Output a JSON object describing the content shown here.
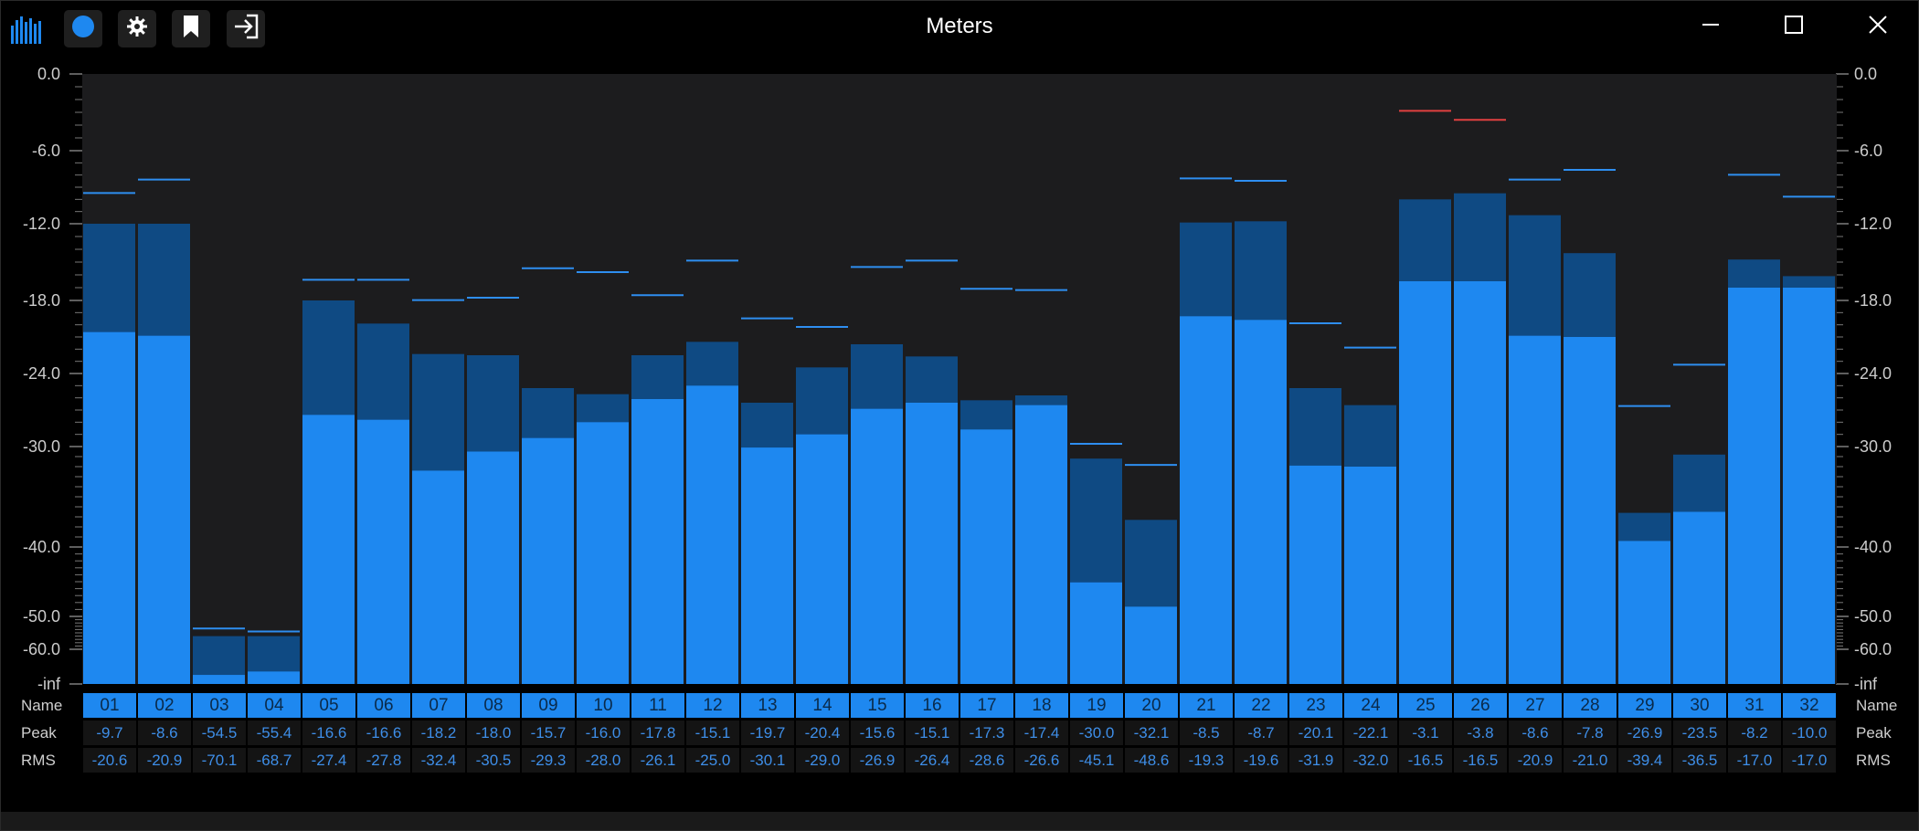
{
  "window": {
    "title": "Meters"
  },
  "toolbar": [
    {
      "name": "meter-logo-icon",
      "interactable": false
    },
    {
      "name": "record-dot-icon",
      "interactable": true
    },
    {
      "name": "gear-icon",
      "interactable": true
    },
    {
      "name": "bookmark-icon",
      "interactable": true
    },
    {
      "name": "exit-icon",
      "interactable": true
    }
  ],
  "window_controls": [
    "minimize-icon",
    "maximize-icon",
    "close-icon"
  ],
  "colors": {
    "rms": "#1e88f0",
    "peak_fill": "#0f4a83",
    "peak_hold": "#2e8ef0",
    "over_hold": "#e04040",
    "panel": "#1c1c1e"
  },
  "scale": {
    "ticks": [
      "0.0",
      "-6.0",
      "-12.0",
      "-18.0",
      "-24.0",
      "-30.0",
      "-40.0",
      "-50.0",
      "-60.0",
      "-inf"
    ]
  },
  "row_labels": {
    "name": "Name",
    "peak": "Peak",
    "rms": "RMS"
  },
  "chart_data": {
    "type": "bar",
    "categories": [
      "01",
      "02",
      "03",
      "04",
      "05",
      "06",
      "07",
      "08",
      "09",
      "10",
      "11",
      "12",
      "13",
      "14",
      "15",
      "16",
      "17",
      "18",
      "19",
      "20",
      "21",
      "22",
      "23",
      "24",
      "25",
      "26",
      "27",
      "28",
      "29",
      "30",
      "31",
      "32"
    ],
    "series": [
      {
        "name": "Peak",
        "values": [
          -9.7,
          -8.6,
          -54.5,
          -55.4,
          -16.6,
          -16.6,
          -18.2,
          -18.0,
          -15.7,
          -16.0,
          -17.8,
          -15.1,
          -19.7,
          -20.4,
          -15.6,
          -15.1,
          -17.3,
          -17.4,
          -30.0,
          -32.1,
          -8.5,
          -8.7,
          -20.1,
          -22.1,
          -3.1,
          -3.8,
          -8.6,
          -7.8,
          -26.9,
          -23.5,
          -8.2,
          -10.0
        ]
      },
      {
        "name": "RMS",
        "values": [
          -20.6,
          -20.9,
          -70.1,
          -68.7,
          -27.4,
          -27.8,
          -32.4,
          -30.5,
          -29.3,
          -28.0,
          -26.1,
          -25.0,
          -30.1,
          -29.0,
          -26.9,
          -26.4,
          -28.6,
          -26.6,
          -45.1,
          -48.6,
          -19.3,
          -19.6,
          -31.9,
          -32.0,
          -16.5,
          -16.5,
          -20.9,
          -21.0,
          -39.4,
          -36.5,
          -17.0,
          -17.0
        ]
      }
    ],
    "peak_fill_values": [
      -12.0,
      -12.0,
      -56.0,
      -56.0,
      -18.0,
      -19.9,
      -22.4,
      -22.5,
      -25.2,
      -25.7,
      -22.5,
      -21.4,
      -26.4,
      -23.5,
      -21.6,
      -22.6,
      -26.2,
      -25.8,
      -31.2,
      -37.3,
      -11.9,
      -11.8,
      -25.2,
      -26.6,
      -10.0,
      -9.5,
      -11.3,
      -14.3,
      -36.6,
      -30.8,
      -14.8,
      -16.1
    ],
    "ylabel": "",
    "ylim": [
      "-inf",
      0
    ],
    "scale": "nonlinear-dB",
    "grid": false,
    "legend": "none"
  }
}
